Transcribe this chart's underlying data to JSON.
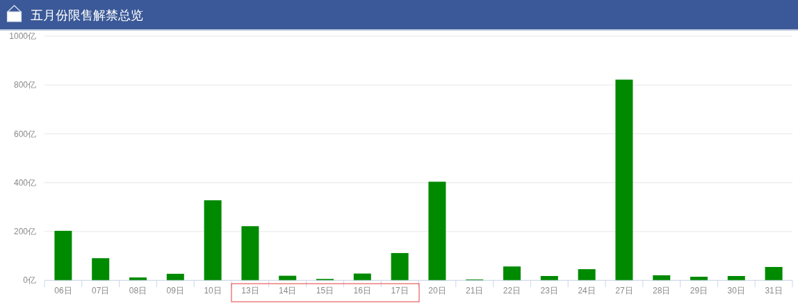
{
  "chart_data": {
    "type": "bar",
    "title": "五月份限售解禁总览",
    "categories": [
      "06日",
      "07日",
      "08日",
      "09日",
      "10日",
      "13日",
      "14日",
      "15日",
      "16日",
      "17日",
      "20日",
      "21日",
      "22日",
      "23日",
      "24日",
      "27日",
      "28日",
      "29日",
      "30日",
      "31日"
    ],
    "values": [
      203,
      91,
      12,
      27,
      328,
      222,
      19,
      6,
      28,
      112,
      404,
      4,
      57,
      18,
      46,
      822,
      21,
      15,
      18,
      55
    ],
    "color": "#008a00",
    "ylim": [
      0,
      1000
    ],
    "yticks": [
      {
        "value": 0,
        "label": "0亿"
      },
      {
        "value": 200,
        "label": "200亿"
      },
      {
        "value": 400,
        "label": "400亿"
      },
      {
        "value": 600,
        "label": "600亿"
      },
      {
        "value": 800,
        "label": "800亿"
      },
      {
        "value": 1000,
        "label": "1000亿"
      }
    ],
    "grid": "y"
  }
}
